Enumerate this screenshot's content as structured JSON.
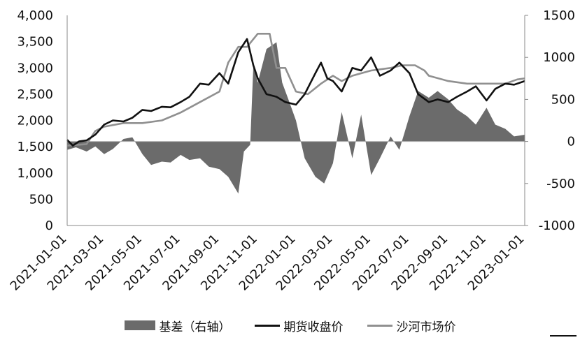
{
  "chart_data": {
    "type": "line",
    "left_axis": {
      "ylim": [
        0,
        4000
      ],
      "ticks": [
        "4,000",
        "3,500",
        "3,000",
        "2,500",
        "2,000",
        "1,500",
        "1,000",
        "500",
        "0"
      ],
      "tick_values": [
        4000,
        3500,
        3000,
        2500,
        2000,
        1500,
        1000,
        500,
        0
      ]
    },
    "right_axis": {
      "ylim": [
        -1000,
        1500
      ],
      "ticks": [
        "1500",
        "1000",
        "500",
        "0",
        "-500",
        "-1000"
      ],
      "tick_values": [
        1500,
        1000,
        500,
        0,
        -500,
        -1000
      ]
    },
    "x_axis": {
      "range": [
        "2021-01-01",
        "2023-01-01"
      ],
      "ticks": [
        "2021-01-01",
        "2021-03-01",
        "2021-05-01",
        "2021-07-01",
        "2021-09-01",
        "2021-11-01",
        "2022-01-01",
        "2022-03-01",
        "2022-05-01",
        "2022-07-01",
        "2022-09-01",
        "2022-11-01",
        "2023-01-01"
      ]
    },
    "series": [
      {
        "name": "基差（右轴）",
        "type": "area",
        "axis": "right",
        "color": "#6b6b6b",
        "points": [
          [
            "2021-01-01",
            -100
          ],
          [
            "2021-01-15",
            -70
          ],
          [
            "2021-02-01",
            -120
          ],
          [
            "2021-02-15",
            -60
          ],
          [
            "2021-03-01",
            -150
          ],
          [
            "2021-03-15",
            -90
          ],
          [
            "2021-04-01",
            30
          ],
          [
            "2021-04-15",
            50
          ],
          [
            "2021-05-01",
            -150
          ],
          [
            "2021-05-15",
            -280
          ],
          [
            "2021-06-01",
            -240
          ],
          [
            "2021-06-15",
            -250
          ],
          [
            "2021-07-01",
            -160
          ],
          [
            "2021-07-15",
            -220
          ],
          [
            "2021-08-01",
            -200
          ],
          [
            "2021-08-15",
            -300
          ],
          [
            "2021-09-01",
            -330
          ],
          [
            "2021-09-15",
            -420
          ],
          [
            "2021-10-01",
            -620
          ],
          [
            "2021-10-10",
            -120
          ],
          [
            "2021-10-20",
            -40
          ],
          [
            "2021-10-25",
            900
          ],
          [
            "2021-11-01",
            700
          ],
          [
            "2021-11-15",
            1100
          ],
          [
            "2021-12-01",
            1180
          ],
          [
            "2021-12-10",
            700
          ],
          [
            "2021-12-20",
            500
          ],
          [
            "2022-01-01",
            250
          ],
          [
            "2022-01-15",
            -200
          ],
          [
            "2022-02-01",
            -420
          ],
          [
            "2022-02-15",
            -500
          ],
          [
            "2022-03-01",
            -260
          ],
          [
            "2022-03-15",
            350
          ],
          [
            "2022-04-01",
            -200
          ],
          [
            "2022-04-15",
            320
          ],
          [
            "2022-05-01",
            -400
          ],
          [
            "2022-05-15",
            -200
          ],
          [
            "2022-06-01",
            60
          ],
          [
            "2022-06-15",
            -100
          ],
          [
            "2022-07-01",
            300
          ],
          [
            "2022-07-15",
            600
          ],
          [
            "2022-08-01",
            520
          ],
          [
            "2022-08-15",
            600
          ],
          [
            "2022-09-01",
            500
          ],
          [
            "2022-09-15",
            380
          ],
          [
            "2022-10-01",
            300
          ],
          [
            "2022-10-15",
            200
          ],
          [
            "2022-11-01",
            400
          ],
          [
            "2022-11-15",
            200
          ],
          [
            "2022-12-01",
            150
          ],
          [
            "2022-12-15",
            60
          ],
          [
            "2023-01-01",
            80
          ]
        ]
      },
      {
        "name": "期货收盘价",
        "type": "line",
        "axis": "left",
        "color": "#111111",
        "points": [
          [
            "2021-01-01",
            1630
          ],
          [
            "2021-01-10",
            1520
          ],
          [
            "2021-01-20",
            1600
          ],
          [
            "2021-02-01",
            1620
          ],
          [
            "2021-02-15",
            1730
          ],
          [
            "2021-03-01",
            1920
          ],
          [
            "2021-03-15",
            2000
          ],
          [
            "2021-04-01",
            1980
          ],
          [
            "2021-04-15",
            2050
          ],
          [
            "2021-05-01",
            2200
          ],
          [
            "2021-05-15",
            2180
          ],
          [
            "2021-06-01",
            2260
          ],
          [
            "2021-06-15",
            2250
          ],
          [
            "2021-07-01",
            2350
          ],
          [
            "2021-07-15",
            2450
          ],
          [
            "2021-08-01",
            2700
          ],
          [
            "2021-08-15",
            2680
          ],
          [
            "2021-09-01",
            2900
          ],
          [
            "2021-09-15",
            2700
          ],
          [
            "2021-10-01",
            3300
          ],
          [
            "2021-10-15",
            3550
          ],
          [
            "2021-10-25",
            3050
          ],
          [
            "2021-11-01",
            2800
          ],
          [
            "2021-11-15",
            2500
          ],
          [
            "2021-12-01",
            2450
          ],
          [
            "2021-12-15",
            2350
          ],
          [
            "2022-01-01",
            2300
          ],
          [
            "2022-01-15",
            2500
          ],
          [
            "2022-02-01",
            2900
          ],
          [
            "2022-02-10",
            3100
          ],
          [
            "2022-02-20",
            2800
          ],
          [
            "2022-03-01",
            2750
          ],
          [
            "2022-03-15",
            2550
          ],
          [
            "2022-04-01",
            3000
          ],
          [
            "2022-04-15",
            2950
          ],
          [
            "2022-05-01",
            3200
          ],
          [
            "2022-05-15",
            2850
          ],
          [
            "2022-06-01",
            2950
          ],
          [
            "2022-06-15",
            3100
          ],
          [
            "2022-07-01",
            2900
          ],
          [
            "2022-07-15",
            2500
          ],
          [
            "2022-08-01",
            2350
          ],
          [
            "2022-08-15",
            2400
          ],
          [
            "2022-09-01",
            2350
          ],
          [
            "2022-09-15",
            2450
          ],
          [
            "2022-10-01",
            2550
          ],
          [
            "2022-10-15",
            2650
          ],
          [
            "2022-11-01",
            2380
          ],
          [
            "2022-11-15",
            2600
          ],
          [
            "2022-12-01",
            2700
          ],
          [
            "2022-12-15",
            2680
          ],
          [
            "2023-01-01",
            2750
          ]
        ]
      },
      {
        "name": "沙河市场价",
        "type": "line",
        "axis": "left",
        "color": "#909090",
        "points": [
          [
            "2021-01-01",
            1520
          ],
          [
            "2021-02-01",
            1550
          ],
          [
            "2021-02-15",
            1800
          ],
          [
            "2021-03-01",
            1880
          ],
          [
            "2021-04-01",
            1950
          ],
          [
            "2021-05-01",
            1950
          ],
          [
            "2021-06-01",
            2000
          ],
          [
            "2021-07-01",
            2150
          ],
          [
            "2021-08-01",
            2350
          ],
          [
            "2021-09-01",
            2550
          ],
          [
            "2021-09-15",
            3100
          ],
          [
            "2021-10-01",
            3400
          ],
          [
            "2021-10-15",
            3400
          ],
          [
            "2021-11-01",
            3650
          ],
          [
            "2021-11-20",
            3650
          ],
          [
            "2021-12-01",
            3000
          ],
          [
            "2021-12-15",
            3000
          ],
          [
            "2022-01-01",
            2550
          ],
          [
            "2022-01-20",
            2500
          ],
          [
            "2022-02-10",
            2700
          ],
          [
            "2022-03-01",
            2850
          ],
          [
            "2022-03-15",
            2750
          ],
          [
            "2022-04-01",
            2850
          ],
          [
            "2022-05-01",
            2950
          ],
          [
            "2022-06-01",
            3000
          ],
          [
            "2022-06-20",
            3050
          ],
          [
            "2022-07-10",
            3050
          ],
          [
            "2022-07-25",
            2950
          ],
          [
            "2022-08-01",
            2850
          ],
          [
            "2022-09-01",
            2750
          ],
          [
            "2022-10-01",
            2700
          ],
          [
            "2022-11-01",
            2700
          ],
          [
            "2022-12-01",
            2700
          ],
          [
            "2022-12-20",
            2780
          ],
          [
            "2023-01-01",
            2800
          ]
        ]
      }
    ],
    "grid": false,
    "legend": "bottom"
  }
}
